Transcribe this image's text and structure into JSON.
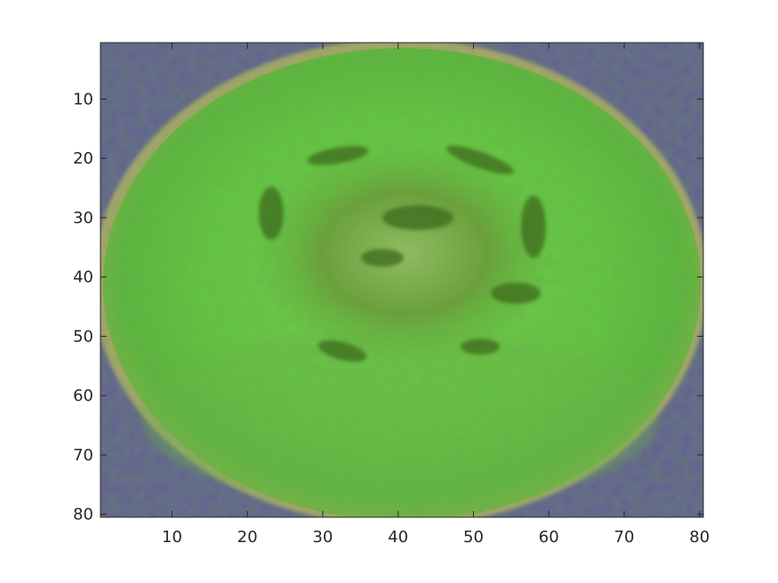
{
  "figure": {
    "image_description_colors": {
      "background": "#ffffff",
      "border_bg": "#5a5a8c",
      "outer_ring": "#b5ad5e",
      "fruit_light": "#7ad85c",
      "fruit_mid": "#5ec23c",
      "fruit_dark": "#3f8e28",
      "core_dark": "#4a6a1c",
      "core_light": "#8cb85e",
      "axis": "#262626"
    },
    "x_axis": {
      "range": [
        0.5,
        80.5
      ],
      "ticks": [
        10,
        20,
        30,
        40,
        50,
        60,
        70,
        80
      ],
      "tick_labels": [
        "10",
        "20",
        "30",
        "40",
        "50",
        "60",
        "70",
        "80"
      ]
    },
    "y_axis": {
      "range": [
        0.5,
        80.5
      ],
      "reversed": true,
      "ticks": [
        10,
        20,
        30,
        40,
        50,
        60,
        70,
        80
      ],
      "tick_labels": [
        "10",
        "20",
        "30",
        "40",
        "50",
        "60",
        "70",
        "80"
      ]
    }
  }
}
